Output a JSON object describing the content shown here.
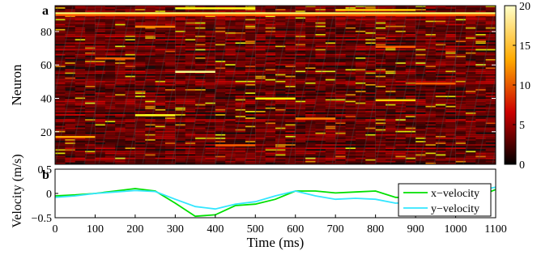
{
  "chart_data": [
    {
      "type": "heatmap",
      "panel_label": "a",
      "ylabel": "Neuron",
      "yticks": [
        20,
        40,
        60,
        80
      ],
      "ylim": [
        1,
        95
      ],
      "xlim": [
        0,
        1100
      ],
      "n_neurons": 95,
      "colorbar": {
        "min": 0,
        "max": 20,
        "ticks": [
          0,
          5,
          10,
          15,
          20
        ]
      },
      "highlights": [
        {
          "neuron": 91,
          "x0": 0,
          "x1": 1100,
          "value": 17
        },
        {
          "neuron": 90,
          "x0": 0,
          "x1": 1100,
          "value": 9
        },
        {
          "neuron": 94,
          "x0": 300,
          "x1": 500,
          "value": 14
        },
        {
          "neuron": 93,
          "x0": 700,
          "x1": 900,
          "value": 12
        },
        {
          "neuron": 56,
          "x0": 300,
          "x1": 400,
          "value": 18
        },
        {
          "neuron": 40,
          "x0": 500,
          "x1": 600,
          "value": 13
        },
        {
          "neuron": 39,
          "x0": 800,
          "x1": 900,
          "value": 12
        },
        {
          "neuron": 30,
          "x0": 200,
          "x1": 300,
          "value": 14
        },
        {
          "neuron": 28,
          "x0": 600,
          "x1": 700,
          "value": 10
        },
        {
          "neuron": 17,
          "x0": 0,
          "x1": 100,
          "value": 11
        },
        {
          "neuron": 83,
          "x0": 200,
          "x1": 300,
          "value": 10
        },
        {
          "neuron": 71,
          "x0": 800,
          "x1": 900,
          "value": 9
        },
        {
          "neuron": 64,
          "x0": 100,
          "x1": 200,
          "value": 9
        },
        {
          "neuron": 49,
          "x0": 900,
          "x1": 1000,
          "value": 9
        },
        {
          "neuron": 12,
          "x0": 400,
          "x1": 500,
          "value": 9
        }
      ]
    },
    {
      "type": "line",
      "panel_label": "b",
      "xlabel": "Time (ms)",
      "ylabel": "Velocity (m/s)",
      "xlim": [
        0,
        1100
      ],
      "ylim": [
        -0.5,
        0.5
      ],
      "xticks": [
        0,
        100,
        200,
        300,
        400,
        500,
        600,
        700,
        800,
        900,
        1000,
        1100
      ],
      "yticks": [
        -0.5,
        0,
        0.5
      ],
      "ytick_labels": [
        "−0.5",
        "0",
        "0.5"
      ],
      "legend_position": "right",
      "x": [
        0,
        50,
        100,
        150,
        200,
        250,
        300,
        350,
        400,
        450,
        500,
        550,
        600,
        650,
        700,
        750,
        800,
        850,
        900,
        950,
        1000,
        1050,
        1100
      ],
      "series": [
        {
          "name": "x−velocity",
          "color": "#00e000",
          "values": [
            -0.05,
            -0.03,
            0.0,
            0.05,
            0.1,
            0.05,
            -0.2,
            -0.47,
            -0.44,
            -0.25,
            -0.22,
            -0.12,
            0.05,
            0.05,
            0.01,
            0.03,
            0.05,
            -0.08,
            -0.1,
            -0.05,
            -0.1,
            -0.08,
            0.08
          ]
        },
        {
          "name": "y−velocity",
          "color": "#33e6ff",
          "values": [
            -0.08,
            -0.05,
            0.0,
            0.03,
            0.06,
            0.04,
            -0.12,
            -0.27,
            -0.32,
            -0.22,
            -0.17,
            -0.05,
            0.05,
            -0.05,
            -0.12,
            -0.1,
            -0.12,
            -0.2,
            -0.18,
            -0.12,
            -0.05,
            0.05,
            0.13
          ]
        }
      ]
    }
  ]
}
